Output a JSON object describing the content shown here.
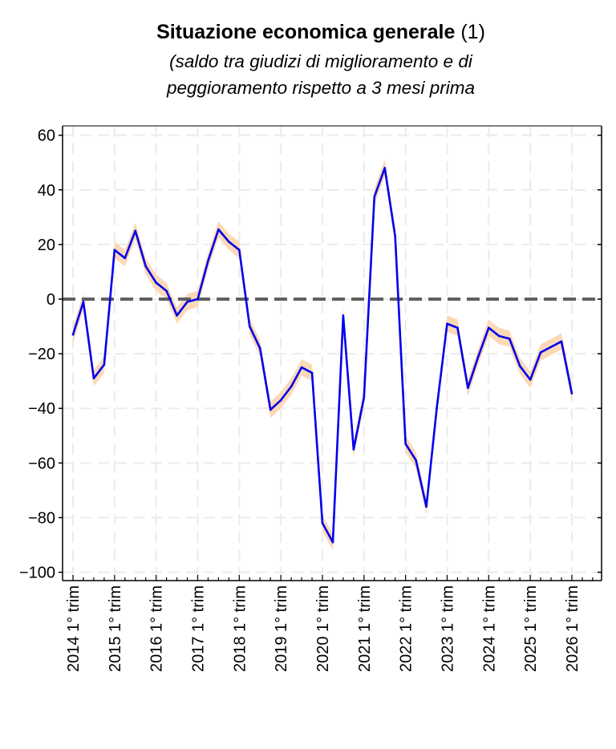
{
  "chart_data": {
    "type": "line",
    "title": "Situazione economica generale",
    "title_note": "(1)",
    "subtitle_lines": [
      "(saldo tra giudizi di miglioramento e di",
      "peggioramento rispetto a 3 mesi prima"
    ],
    "xlabel": "",
    "ylabel": "",
    "ylim": [
      -104,
      64
    ],
    "yticks": [
      60,
      40,
      20,
      0,
      -20,
      -40,
      -60,
      -80,
      -100
    ],
    "ytick_labels": [
      "60",
      "40",
      "20",
      "0",
      "−20",
      "−40",
      "−60",
      "−80",
      "−100"
    ],
    "xtick_labels": [
      "2014 1° trim",
      "2015 1° trim",
      "2016 1° trim",
      "2017 1° trim",
      "2018 1° trim",
      "2019 1° trim",
      "2020 1° trim",
      "2021 1° trim",
      "2022 1° trim",
      "2023 1° trim",
      "2024 1° trim",
      "2025 1° trim",
      "2026 1° trim"
    ],
    "x_start": "2014 Q1",
    "frequency": "quarterly",
    "grid": true,
    "reference_line": 0,
    "series": [
      {
        "name": "Situazione economica generale",
        "color": "#0000ee",
        "values": [
          -13,
          -1,
          -29,
          -24,
          18,
          15,
          25,
          12,
          6,
          3,
          -6,
          -1,
          0,
          14,
          25.5,
          21,
          18,
          -10,
          -18,
          -40.5,
          -37,
          -32,
          -25,
          -27,
          -82,
          -89,
          -6,
          -55,
          -36,
          37.5,
          48,
          23,
          -53,
          -59,
          -76,
          -40,
          -9,
          -10.5,
          -32.5,
          -21,
          -10.5,
          -13.5,
          -14.5,
          -24.5,
          -29.5,
          -19.5,
          -17.5,
          -15.5,
          -34.5
        ],
        "band_halfwidth": 3,
        "band_color": "#fcd9b6"
      }
    ]
  }
}
